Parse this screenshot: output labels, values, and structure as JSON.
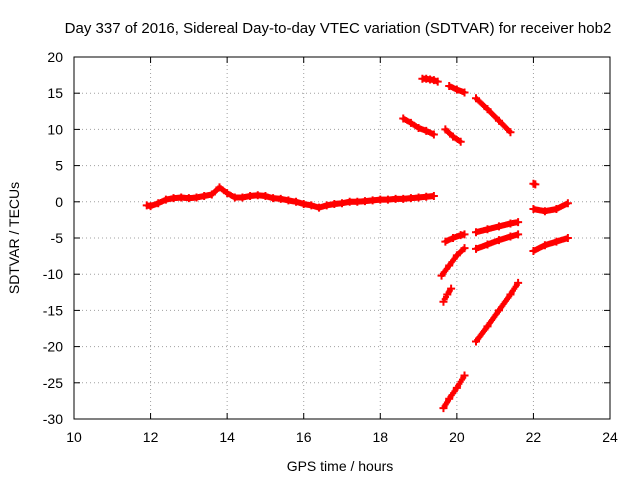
{
  "chart_data": {
    "type": "scatter",
    "title": "Day 337 of 2016, Sidereal Day-to-day VTEC variation (SDTVAR) for receiver hob2",
    "xlabel": "GPS time / hours",
    "ylabel": "SDTVAR / TECUs",
    "xlim": [
      10,
      24
    ],
    "ylim": [
      -30,
      20
    ],
    "xticks": [
      "10",
      "12",
      "14",
      "16",
      "18",
      "20",
      "22",
      "24"
    ],
    "yticks": [
      "20",
      "15",
      "10",
      "5",
      "0",
      "-5",
      "-10",
      "-15",
      "-20",
      "-25",
      "-30"
    ],
    "grid": true,
    "marker": "plus",
    "color": "#ff0000",
    "series": [
      {
        "segments": [
          {
            "x": [
              11.9,
              12.0,
              12.2,
              12.4,
              12.6,
              12.8,
              13.0,
              13.2,
              13.4,
              13.6,
              13.8,
              14.0,
              14.2,
              14.4,
              14.6,
              14.8,
              15.0,
              15.2,
              15.4,
              15.6,
              15.8,
              16.0,
              16.2,
              16.4,
              16.6,
              16.8,
              17.0,
              17.2,
              17.4,
              17.6,
              17.8,
              18.0,
              18.2,
              18.4,
              18.6,
              18.8,
              19.0,
              19.2,
              19.4
            ],
            "y": [
              -0.5,
              -0.6,
              -0.2,
              0.3,
              0.5,
              0.6,
              0.5,
              0.6,
              0.8,
              1.0,
              2.0,
              1.2,
              0.6,
              0.6,
              0.8,
              0.9,
              0.8,
              0.5,
              0.4,
              0.2,
              0.0,
              -0.3,
              -0.5,
              -0.8,
              -0.5,
              -0.3,
              -0.2,
              0.0,
              0.0,
              0.1,
              0.2,
              0.3,
              0.3,
              0.4,
              0.4,
              0.5,
              0.6,
              0.7,
              0.8
            ]
          },
          {
            "x": [
              19.1,
              19.2,
              19.3,
              19.4,
              19.5
            ],
            "y": [
              17.0,
              17.0,
              16.9,
              16.8,
              16.6
            ]
          },
          {
            "x": [
              19.8,
              20.0,
              20.2
            ],
            "y": [
              16.0,
              15.5,
              15.1
            ]
          },
          {
            "x": [
              20.5,
              20.8,
              21.1,
              21.4
            ],
            "y": [
              14.3,
              12.8,
              11.2,
              9.6
            ]
          },
          {
            "x": [
              18.6,
              18.8,
              19.0,
              19.2,
              19.4
            ],
            "y": [
              11.5,
              10.9,
              10.2,
              9.8,
              9.3
            ]
          },
          {
            "x": [
              19.7,
              19.9,
              20.1
            ],
            "y": [
              10.0,
              9.0,
              8.3
            ]
          },
          {
            "x": [
              22.0,
              22.05
            ],
            "y": [
              2.5,
              2.4
            ]
          },
          {
            "x": [
              22.0,
              22.3,
              22.6,
              22.9
            ],
            "y": [
              -1.0,
              -1.3,
              -1.0,
              -0.2
            ]
          },
          {
            "x": [
              19.7,
              19.9,
              20.1,
              20.2
            ],
            "y": [
              -5.5,
              -5.0,
              -4.6,
              -4.5
            ]
          },
          {
            "x": [
              20.5,
              20.8,
              21.1,
              21.4,
              21.6
            ],
            "y": [
              -4.2,
              -3.8,
              -3.4,
              -3.0,
              -2.8
            ]
          },
          {
            "x": [
              19.6,
              19.8,
              20.0,
              20.2
            ],
            "y": [
              -10.2,
              -8.8,
              -7.4,
              -6.4
            ]
          },
          {
            "x": [
              20.5,
              20.8,
              21.1,
              21.4,
              21.6
            ],
            "y": [
              -6.5,
              -5.9,
              -5.3,
              -4.8,
              -4.5
            ]
          },
          {
            "x": [
              22.0,
              22.3,
              22.6,
              22.9
            ],
            "y": [
              -6.8,
              -6.0,
              -5.5,
              -5.0
            ]
          },
          {
            "x": [
              19.65,
              19.75,
              19.85
            ],
            "y": [
              -13.8,
              -12.8,
              -12.0
            ]
          },
          {
            "x": [
              20.5,
              20.8,
              21.1,
              21.4,
              21.6
            ],
            "y": [
              -19.3,
              -17.2,
              -15.0,
              -12.8,
              -11.2
            ]
          },
          {
            "x": [
              19.65,
              19.8,
              20.0,
              20.2
            ],
            "y": [
              -28.5,
              -27.2,
              -25.7,
              -24.0
            ]
          }
        ]
      }
    ]
  }
}
